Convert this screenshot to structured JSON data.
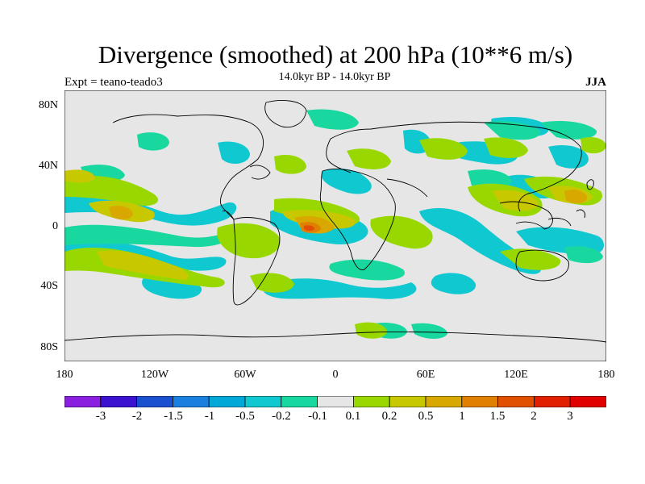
{
  "header": {
    "title": "Divergence (smoothed) at 200 hPa (10**6 m/s)",
    "subtitle": "14.0kyr BP - 14.0kyr BP",
    "experiment": "Expt = teano-teado3",
    "season": "JJA"
  },
  "axes": {
    "lat_ticks": [
      "80N",
      "40N",
      "0",
      "40S",
      "80S"
    ],
    "lon_ticks": [
      "180",
      "120W",
      "60W",
      "0",
      "60E",
      "120E",
      "180"
    ]
  },
  "colorbar": {
    "colors": [
      "#8a1fe0",
      "#3a12d0",
      "#1a4fd0",
      "#1a80e0",
      "#00a8d8",
      "#10c8d0",
      "#18d8a0",
      "#e6e6e6",
      "#98d800",
      "#c8c800",
      "#d8a800",
      "#e08000",
      "#e05000",
      "#e02000",
      "#e00000"
    ],
    "labels": [
      "-3",
      "-2",
      "-1.5",
      "-1",
      "-0.5",
      "-0.2",
      "-0.1",
      "0.1",
      "0.2",
      "0.5",
      "1",
      "1.5",
      "2",
      "3"
    ]
  }
}
